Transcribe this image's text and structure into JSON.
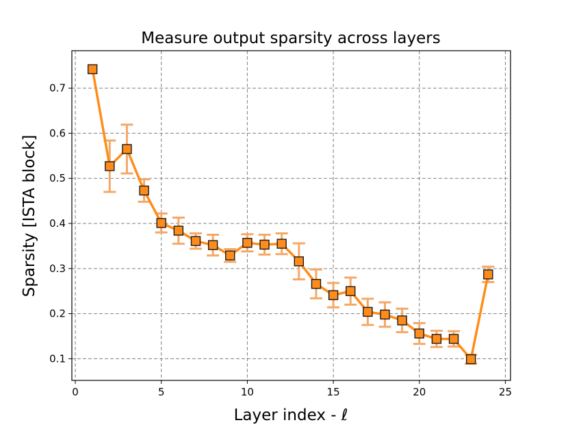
{
  "chart_data": {
    "type": "line",
    "title": "Measure output sparsity across layers",
    "xlabel": "Layer index - ℓ",
    "ylabel": "Sparsity [ISTA block]",
    "xlim": [
      -0.2,
      25.3
    ],
    "ylim": [
      0.052,
      0.783
    ],
    "xticks": [
      0,
      5,
      10,
      15,
      20,
      25
    ],
    "yticks": [
      0.1,
      0.2,
      0.3,
      0.4,
      0.5,
      0.6,
      0.7
    ],
    "grid": true,
    "line_color": "#ff8c1a",
    "marker_color": "#ff8c1a",
    "marker_edge_color": "#1a1a1a",
    "errorbar_color": "#f5a866",
    "series": [
      {
        "x": [
          1,
          2,
          3,
          4,
          5,
          6,
          7,
          8,
          9,
          10,
          11,
          12,
          13,
          14,
          15,
          16,
          17,
          18,
          19,
          20,
          21,
          22,
          23,
          24
        ],
        "y": [
          0.742,
          0.527,
          0.565,
          0.473,
          0.401,
          0.384,
          0.361,
          0.352,
          0.329,
          0.357,
          0.353,
          0.355,
          0.316,
          0.266,
          0.241,
          0.25,
          0.204,
          0.198,
          0.185,
          0.156,
          0.144,
          0.144,
          0.099,
          0.287
        ],
        "err": [
          0.0,
          0.057,
          0.054,
          0.025,
          0.021,
          0.029,
          0.017,
          0.023,
          0.014,
          0.019,
          0.022,
          0.023,
          0.04,
          0.032,
          0.027,
          0.03,
          0.029,
          0.027,
          0.026,
          0.023,
          0.018,
          0.017,
          0.01,
          0.017
        ]
      }
    ]
  }
}
